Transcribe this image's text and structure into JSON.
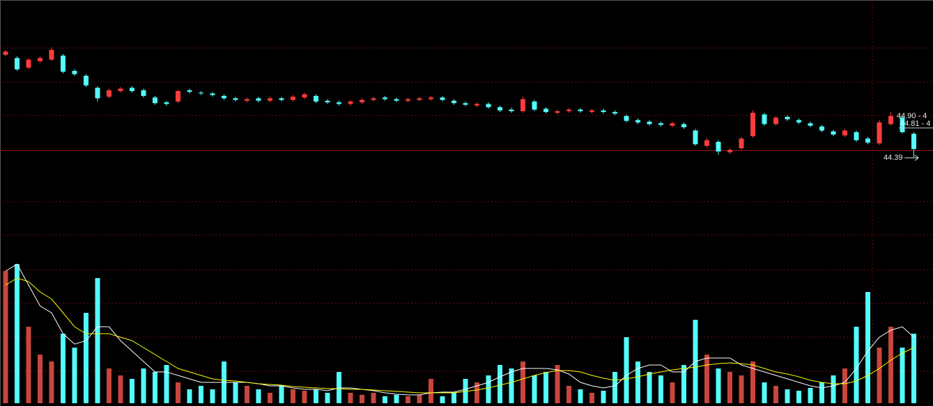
{
  "chart_data": {
    "type": "candlestick",
    "up_color": "#ff3c3c",
    "down_color": "#54fcfc",
    "volume_up_color": "#c8463c",
    "volume_down_color": "#54fcfc",
    "ylim": [
      44.39,
      46.34
    ],
    "volume_ylim": [
      0,
      290
    ],
    "open": [
      45.66,
      45.62,
      45.5,
      45.58,
      45.6,
      45.65,
      45.46,
      45.4,
      45.25,
      45.14,
      45.21,
      45.25,
      45.22,
      45.13,
      45.07,
      45.08,
      45.22,
      45.19,
      45.18,
      45.15,
      45.12,
      45.09,
      45.12,
      45.09,
      45.12,
      45.1,
      45.13,
      45.15,
      45.09,
      45.07,
      45.05,
      45.07,
      45.1,
      45.13,
      45.11,
      45.09,
      45.1,
      45.11,
      45.13,
      45.09,
      45.06,
      45.03,
      45.05,
      45.01,
      44.98,
      44.96,
      45.08,
      44.99,
      44.94,
      44.96,
      44.98,
      44.95,
      44.97,
      44.95,
      44.9,
      44.85,
      44.83,
      44.81,
      44.78,
      44.8,
      44.72,
      44.53,
      44.58,
      44.45,
      44.5,
      44.65,
      44.92,
      44.8,
      44.89,
      44.85,
      44.81,
      44.77,
      44.71,
      44.66,
      44.7,
      44.62,
      44.56,
      44.8,
      44.88,
      44.68
    ],
    "high": [
      45.72,
      45.64,
      45.62,
      45.64,
      45.75,
      45.67,
      45.48,
      45.42,
      45.27,
      45.24,
      45.26,
      45.27,
      45.24,
      45.15,
      45.09,
      45.23,
      45.24,
      45.21,
      45.2,
      45.17,
      45.14,
      45.13,
      45.14,
      45.14,
      45.14,
      45.16,
      45.19,
      45.17,
      45.11,
      45.09,
      45.1,
      45.12,
      45.14,
      45.15,
      45.13,
      45.13,
      45.14,
      45.15,
      45.15,
      45.11,
      45.08,
      45.07,
      45.07,
      45.03,
      45.0,
      45.14,
      45.1,
      45.01,
      44.98,
      45.0,
      45.0,
      44.99,
      44.99,
      44.97,
      44.92,
      44.87,
      44.85,
      44.83,
      44.83,
      44.82,
      44.74,
      44.63,
      44.6,
      44.5,
      44.64,
      44.97,
      44.94,
      44.9,
      44.91,
      44.87,
      44.83,
      44.79,
      44.73,
      44.74,
      44.72,
      44.64,
      44.85,
      44.95,
      44.9,
      44.7
    ],
    "low": [
      45.64,
      45.46,
      45.48,
      45.56,
      45.58,
      45.43,
      45.4,
      45.26,
      45.08,
      45.12,
      45.19,
      45.19,
      45.13,
      45.04,
      45.03,
      45.06,
      45.18,
      45.16,
      45.14,
      45.1,
      45.08,
      45.07,
      45.07,
      45.07,
      45.08,
      45.08,
      45.11,
      45.06,
      45.05,
      45.03,
      45.03,
      45.05,
      45.08,
      45.09,
      45.07,
      45.07,
      45.08,
      45.09,
      45.08,
      45.04,
      45.02,
      45.01,
      44.99,
      44.95,
      44.94,
      44.94,
      44.96,
      44.93,
      44.92,
      44.94,
      44.94,
      44.93,
      44.93,
      44.91,
      44.82,
      44.8,
      44.78,
      44.77,
      44.76,
      44.74,
      44.53,
      44.51,
      44.42,
      44.43,
      44.48,
      44.63,
      44.78,
      44.78,
      44.84,
      44.8,
      44.76,
      44.7,
      44.65,
      44.64,
      44.58,
      44.55,
      44.54,
      44.78,
      44.68,
      44.39
    ],
    "close": [
      45.7,
      45.48,
      45.6,
      45.62,
      45.72,
      45.45,
      45.42,
      45.28,
      45.12,
      45.22,
      45.24,
      45.21,
      45.15,
      45.06,
      45.05,
      45.21,
      45.2,
      45.18,
      45.16,
      45.12,
      45.1,
      45.11,
      45.09,
      45.12,
      45.1,
      45.14,
      45.17,
      45.08,
      45.07,
      45.05,
      45.08,
      45.1,
      45.12,
      45.11,
      45.09,
      45.11,
      45.12,
      45.13,
      45.1,
      45.06,
      45.04,
      45.05,
      45.01,
      44.97,
      44.96,
      45.11,
      44.98,
      44.95,
      44.96,
      44.98,
      44.96,
      44.97,
      44.95,
      44.93,
      44.84,
      44.82,
      44.8,
      44.79,
      44.81,
      44.76,
      44.55,
      44.6,
      44.46,
      44.48,
      44.62,
      44.94,
      44.8,
      44.88,
      44.86,
      44.82,
      44.78,
      44.72,
      44.67,
      44.72,
      44.6,
      44.57,
      44.82,
      44.9,
      44.7,
      44.49
    ],
    "volume": [
      190,
      200,
      110,
      70,
      60,
      100,
      80,
      130,
      180,
      50,
      40,
      35,
      50,
      45,
      55,
      30,
      20,
      25,
      20,
      60,
      30,
      25,
      20,
      15,
      25,
      20,
      18,
      20,
      15,
      45,
      15,
      12,
      15,
      10,
      12,
      10,
      12,
      35,
      10,
      15,
      35,
      30,
      40,
      55,
      50,
      60,
      40,
      45,
      55,
      25,
      20,
      15,
      18,
      45,
      95,
      60,
      45,
      40,
      30,
      55,
      120,
      70,
      50,
      45,
      40,
      60,
      30,
      25,
      20,
      18,
      22,
      30,
      40,
      50,
      110,
      160,
      80,
      110,
      80,
      100
    ],
    "volume_lines": [
      {
        "color": "#ffffff",
        "values": [
          190,
          200,
          170,
          140,
          130,
          100,
          85,
          90,
          110,
          110,
          90,
          75,
          60,
          45,
          45,
          40,
          35,
          30,
          30,
          30,
          30,
          30,
          28,
          25,
          25,
          22,
          20,
          20,
          18,
          22,
          22,
          20,
          18,
          15,
          13,
          12,
          12,
          15,
          16,
          16,
          20,
          25,
          30,
          38,
          45,
          50,
          50,
          50,
          48,
          42,
          30,
          25,
          22,
          25,
          40,
          50,
          55,
          55,
          45,
          45,
          60,
          65,
          65,
          65,
          55,
          50,
          45,
          40,
          35,
          30,
          25,
          22,
          25,
          30,
          50,
          75,
          95,
          105,
          110,
          95
        ]
      },
      {
        "color": "#ffff00",
        "values": [
          170,
          180,
          175,
          160,
          150,
          130,
          110,
          100,
          100,
          100,
          95,
          90,
          80,
          70,
          60,
          50,
          45,
          40,
          35,
          33,
          32,
          30,
          28,
          27,
          26,
          24,
          23,
          22,
          21,
          21,
          20,
          20,
          19,
          18,
          17,
          16,
          15,
          15,
          15,
          15,
          17,
          19,
          22,
          26,
          30,
          35,
          40,
          44,
          47,
          47,
          45,
          40,
          36,
          33,
          35,
          38,
          42,
          45,
          48,
          50,
          52,
          55,
          57,
          58,
          57,
          55,
          50,
          45,
          42,
          38,
          33,
          30,
          28,
          28,
          32,
          40,
          50,
          62,
          72,
          80
        ]
      }
    ],
    "annotations": [
      "44.90 - 4",
      "44.81 - 4",
      "44.39"
    ]
  }
}
